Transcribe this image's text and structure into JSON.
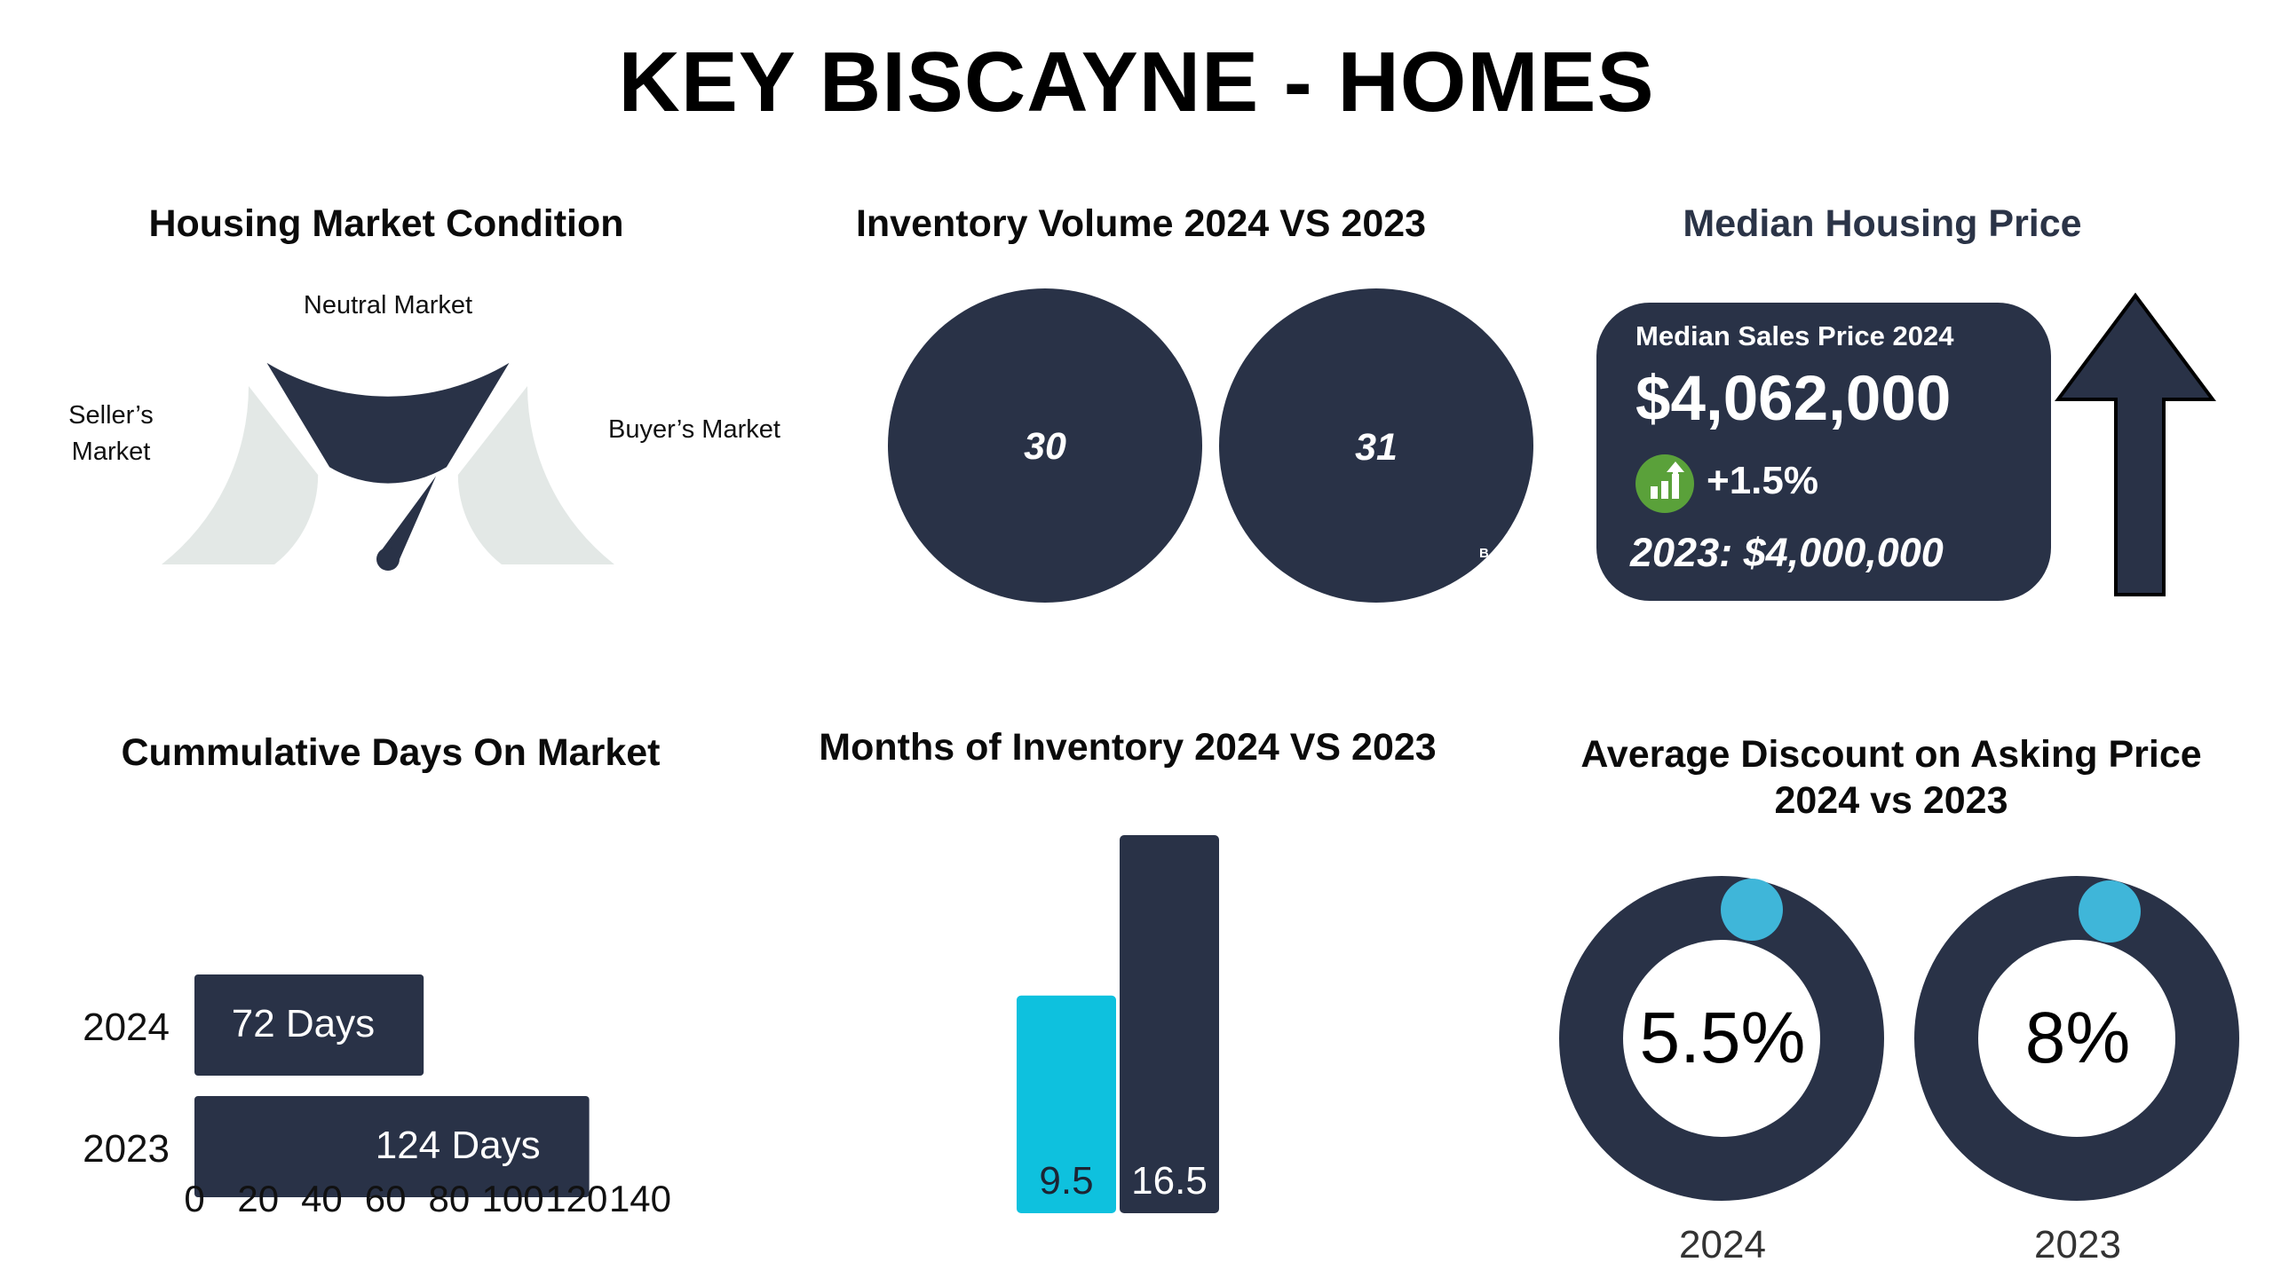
{
  "title": "KEY BISCAYNE - HOMES",
  "colors": {
    "navy": "#293247",
    "light_gray": "#e3e8e6",
    "cyan": "#0ec1de",
    "knob_blue": "#3fb6d9",
    "green": "#5aa13a"
  },
  "market_condition": {
    "title": "Housing Market Condition",
    "labels": {
      "seller": [
        "Seller’s",
        "Market"
      ],
      "neutral": "Neutral Market",
      "buyer": "Buyer’s Market"
    },
    "selected": "Neutral Market"
  },
  "inventory_volume": {
    "title": "Inventory Volume 2024 VS 2023",
    "values": [
      "30",
      "31"
    ],
    "overflow_text": "B"
  },
  "median_price": {
    "title": "Median Housing Price",
    "label": "Median Sales Price 2024",
    "value": "$4,062,000",
    "change": "+1.5%",
    "previous": "2023: $4,000,000",
    "icon": "bar-chart-up-icon",
    "trend_icon": "up-arrow-icon"
  },
  "chart_data": [
    {
      "type": "bar",
      "orientation": "horizontal",
      "title": "Cummulative Days On Market",
      "categories": [
        "2024",
        "2023"
      ],
      "values": [
        72,
        124
      ],
      "value_labels": [
        "72 Days",
        "124 Days"
      ],
      "x_ticks": [
        "0",
        "20",
        "40",
        "60",
        "80",
        "100",
        "120",
        "140"
      ],
      "xlim": [
        0,
        140
      ]
    },
    {
      "type": "bar",
      "title": "Months of Inventory 2024 VS 2023",
      "values": [
        9.5,
        16.5
      ],
      "value_labels": [
        "9.5",
        "16.5"
      ],
      "bar_colors": [
        "#0ec1de",
        "#293247"
      ]
    },
    {
      "type": "pie",
      "title_lines": [
        "Average Discount on Asking Price",
        "2024 vs 2023"
      ],
      "categories": [
        "2024",
        "2023"
      ],
      "value_labels": [
        "5.5%",
        "8%"
      ],
      "values": [
        5.5,
        8
      ]
    }
  ]
}
